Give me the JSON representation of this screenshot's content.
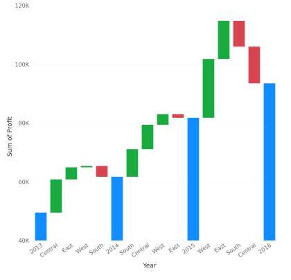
{
  "chart_data": {
    "type": "waterfall",
    "xlabel": "Year",
    "ylabel": "Sum of Profit",
    "ylim": [
      40000,
      120000
    ],
    "yticks": [
      40000,
      60000,
      80000,
      100000,
      120000
    ],
    "ytick_labels": [
      "40K",
      "60K",
      "80K",
      "100K",
      "120K"
    ],
    "grid": true,
    "colors": {
      "increase": "#1aab40",
      "decrease": "#d64550",
      "total": "#118dff"
    },
    "bars": [
      {
        "label": "2013",
        "kind": "total",
        "start": 40000,
        "end": 49500
      },
      {
        "label": "Central",
        "kind": "increase",
        "start": 49500,
        "end": 60800
      },
      {
        "label": "East",
        "kind": "increase",
        "start": 60800,
        "end": 64900
      },
      {
        "label": "West",
        "kind": "increase",
        "start": 64900,
        "end": 65400
      },
      {
        "label": "South",
        "kind": "decrease",
        "start": 65400,
        "end": 61700
      },
      {
        "label": "2014",
        "kind": "total",
        "start": 40000,
        "end": 61700
      },
      {
        "label": "South",
        "kind": "increase",
        "start": 61700,
        "end": 71100
      },
      {
        "label": "Central",
        "kind": "increase",
        "start": 71100,
        "end": 79400
      },
      {
        "label": "West",
        "kind": "increase",
        "start": 79400,
        "end": 83000
      },
      {
        "label": "East",
        "kind": "decrease",
        "start": 83000,
        "end": 81800
      },
      {
        "label": "2015",
        "kind": "total",
        "start": 40000,
        "end": 81800
      },
      {
        "label": "West",
        "kind": "increase",
        "start": 81800,
        "end": 101800
      },
      {
        "label": "East",
        "kind": "increase",
        "start": 101800,
        "end": 114800
      },
      {
        "label": "South",
        "kind": "decrease",
        "start": 114800,
        "end": 106000
      },
      {
        "label": "Central",
        "kind": "decrease",
        "start": 106000,
        "end": 93500
      },
      {
        "label": "2016",
        "kind": "total",
        "start": 40000,
        "end": 93500
      }
    ]
  }
}
